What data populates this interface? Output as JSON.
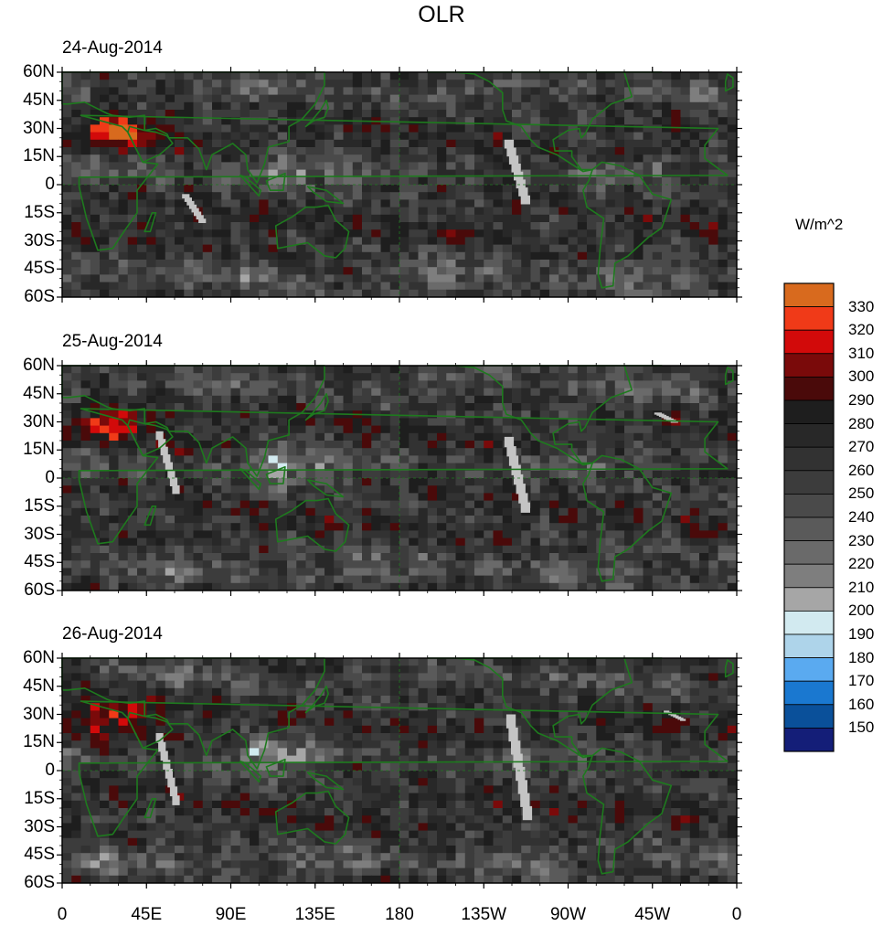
{
  "figure": {
    "title": "OLR",
    "units": "W/m^2"
  },
  "panels": [
    {
      "date": "24-Aug-2014"
    },
    {
      "date": "25-Aug-2014"
    },
    {
      "date": "26-Aug-2014"
    }
  ],
  "axes": {
    "lat_labels": [
      "60N",
      "45N",
      "30N",
      "15N",
      "0",
      "15S",
      "30S",
      "45S",
      "60S"
    ],
    "lon_labels": [
      "0",
      "45E",
      "90E",
      "135E",
      "180",
      "135W",
      "90W",
      "45W",
      "0"
    ],
    "lat_range": [
      -60,
      60
    ],
    "lon_range": [
      0,
      360
    ]
  },
  "colorbar": {
    "labels": [
      "330",
      "320",
      "310",
      "300",
      "290",
      "280",
      "270",
      "260",
      "250",
      "240",
      "230",
      "220",
      "210",
      "200",
      "190",
      "180",
      "170",
      "160",
      "150"
    ],
    "colors": [
      "#d86a1e",
      "#f03a18",
      "#d20a0a",
      "#7a0a0a",
      "#4a0a0a",
      "#1e1e1e",
      "#282828",
      "#323232",
      "#3c3c3c",
      "#4a4a4a",
      "#5a5a5a",
      "#6a6a6a",
      "#7e7e7e",
      "#a6a6a6",
      "#d2eaf0",
      "#aed4ea",
      "#5aaaf0",
      "#1a78d0",
      "#0a509a",
      "#141e78"
    ]
  },
  "map": {
    "coastline_color": "#1e7a1e"
  }
}
